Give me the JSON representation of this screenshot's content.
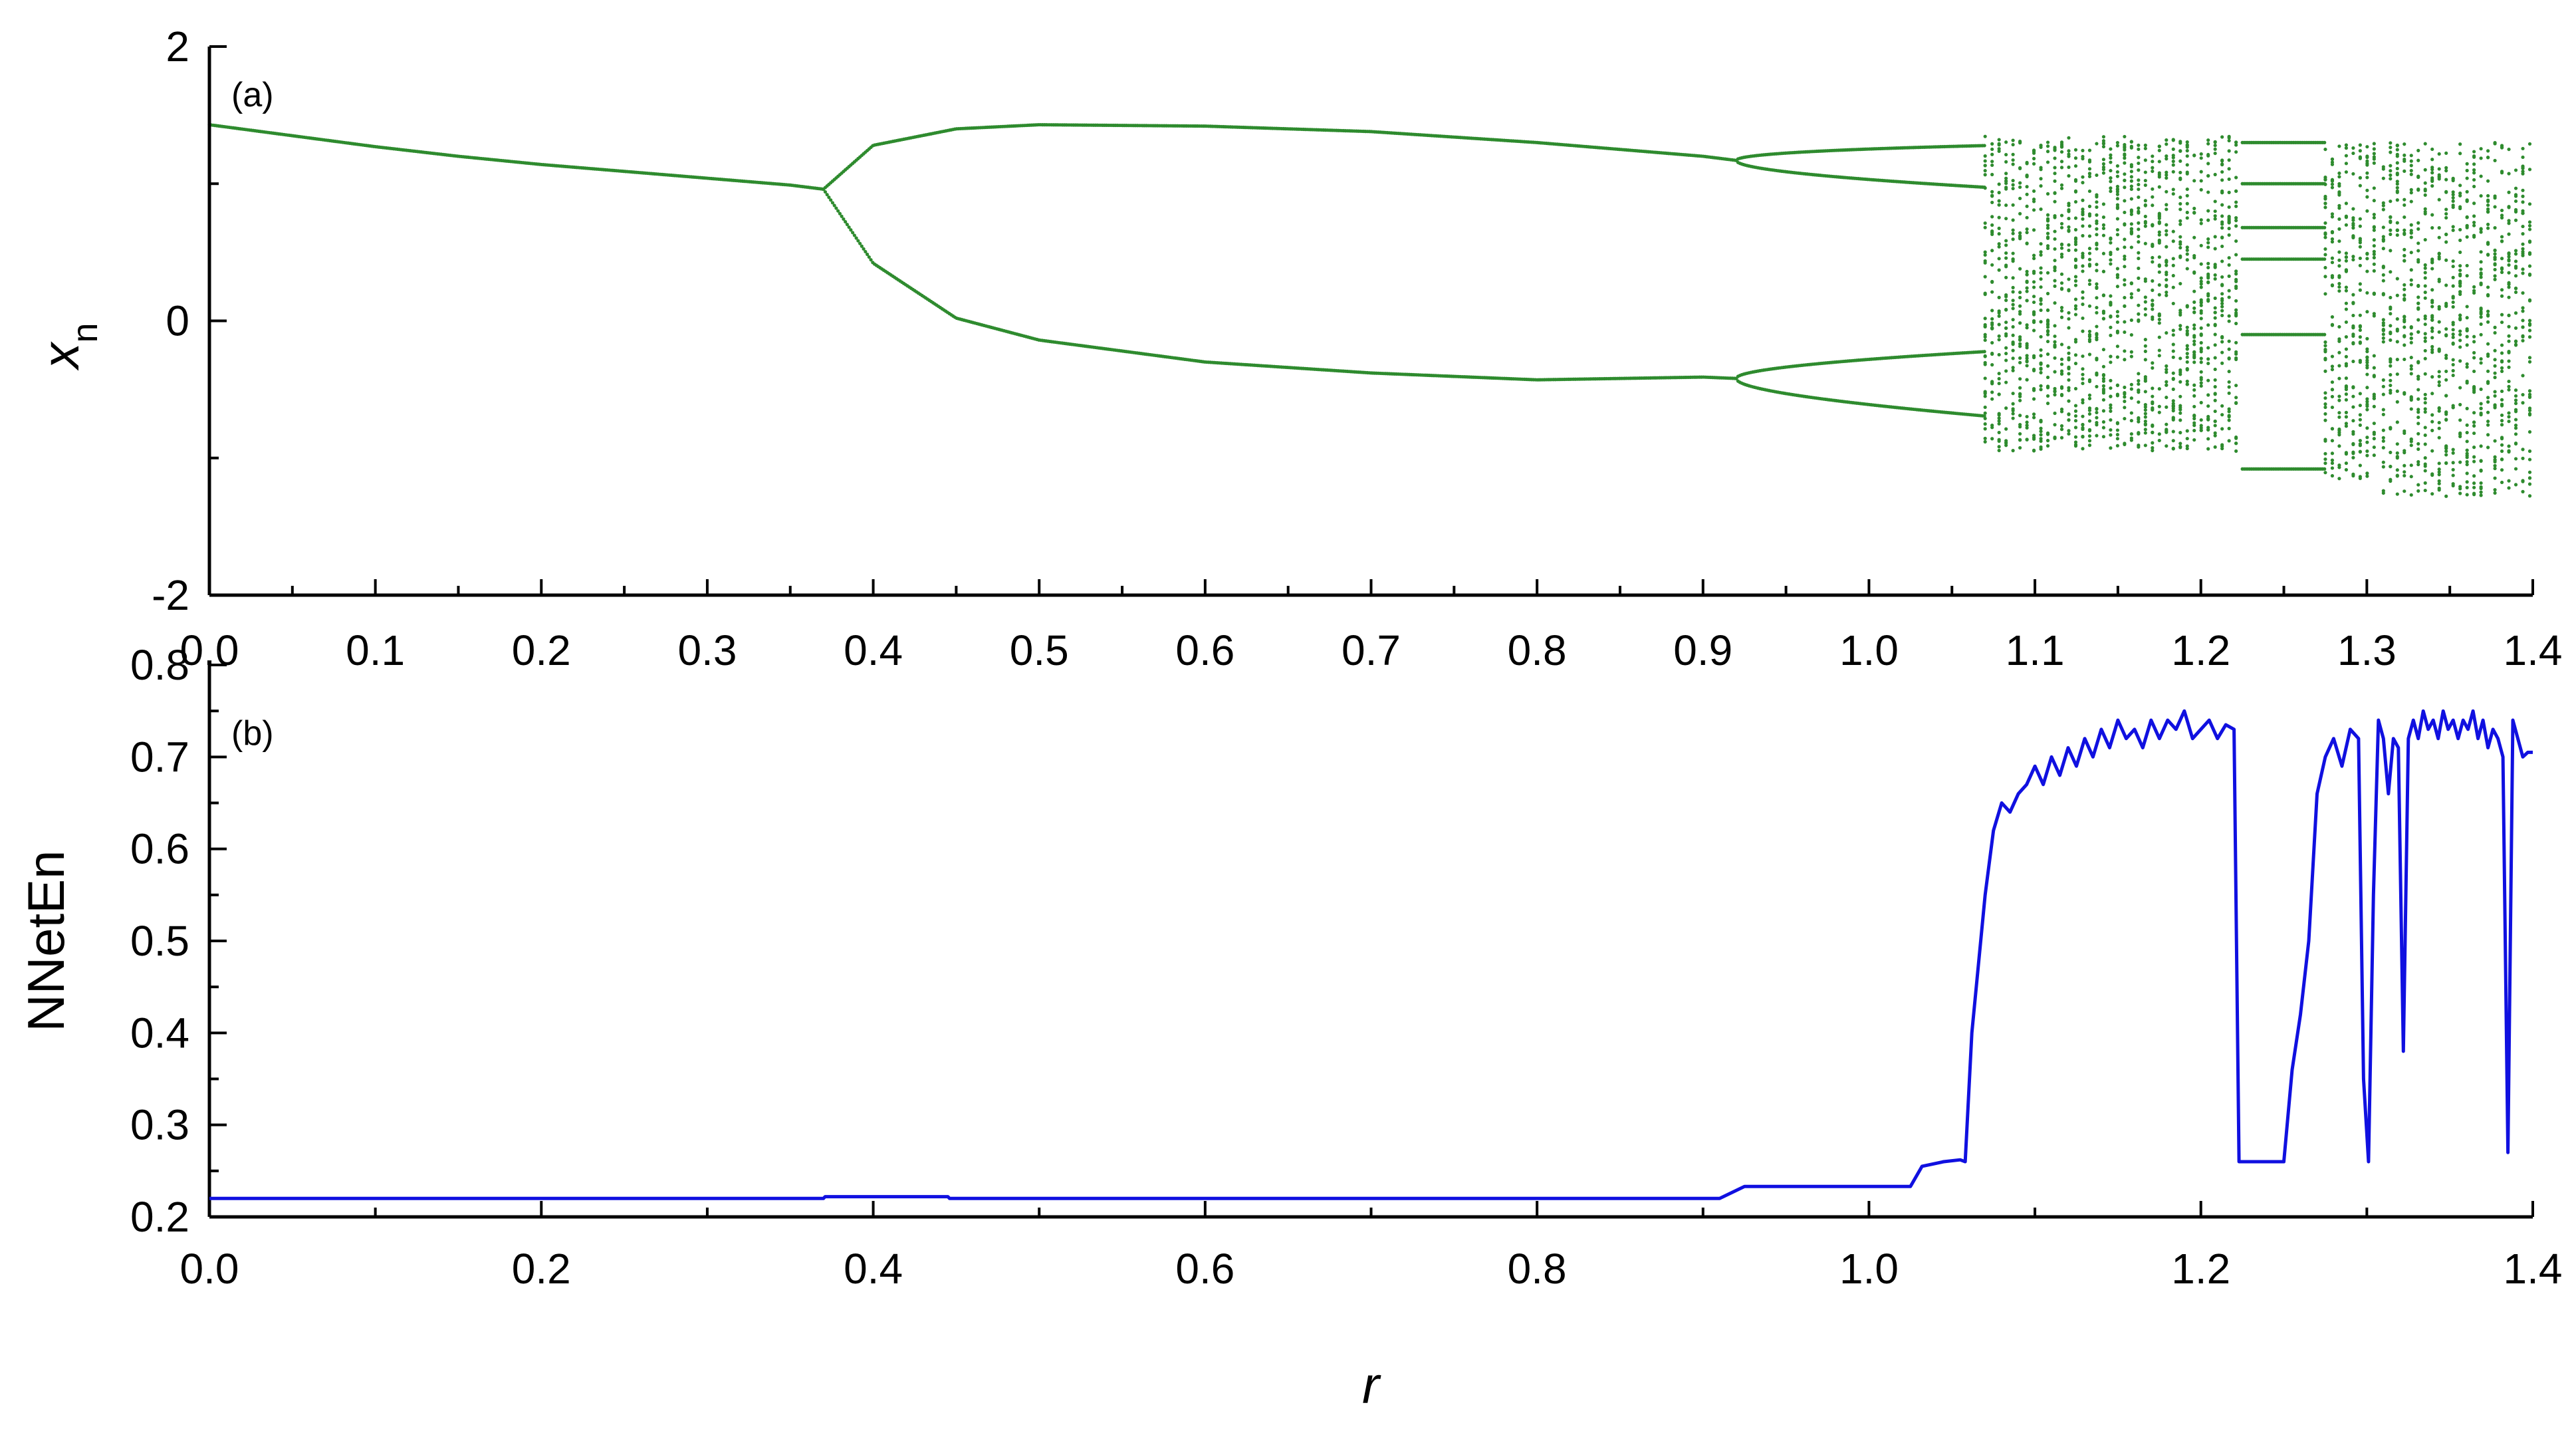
{
  "colors": {
    "bifurcation": "#2e8b2e",
    "entropy": "#1010e0",
    "axes": "#000000"
  },
  "chart_data": [
    {
      "type": "scatter",
      "panel_label": "(a)",
      "xlabel": "",
      "ylabel": "x",
      "ylabel_subscript": "n",
      "xlim": [
        0.0,
        1.4
      ],
      "ylim": [
        -2,
        2
      ],
      "xticks": [
        "0.0",
        "0.1",
        "0.2",
        "0.3",
        "0.4",
        "0.5",
        "0.6",
        "0.7",
        "0.8",
        "0.9",
        "1.0",
        "1.1",
        "1.2",
        "1.3",
        "1.4"
      ],
      "yticks": [
        "-2",
        "0",
        "2"
      ],
      "grid": false,
      "description_of_series": "bifurcation diagram of x_n versus r",
      "series": [
        {
          "kind": "period-1 branch",
          "x": [
            0.0,
            0.05,
            0.1,
            0.15,
            0.2,
            0.25,
            0.3,
            0.35,
            0.37
          ],
          "y": [
            1.43,
            1.35,
            1.27,
            1.2,
            1.14,
            1.09,
            1.04,
            0.99,
            0.96
          ]
        },
        {
          "kind": "period-2 upper branch",
          "x": [
            0.37,
            0.4,
            0.45,
            0.5,
            0.6,
            0.7,
            0.8,
            0.9,
            0.92
          ],
          "y": [
            0.96,
            1.28,
            1.4,
            1.43,
            1.42,
            1.38,
            1.3,
            1.2,
            1.17
          ]
        },
        {
          "kind": "period-2 lower branch",
          "x": [
            0.37,
            0.4,
            0.45,
            0.5,
            0.6,
            0.7,
            0.8,
            0.9,
            0.92
          ],
          "y": [
            0.96,
            0.42,
            0.02,
            -0.14,
            -0.3,
            -0.38,
            -0.43,
            -0.41,
            -0.42
          ]
        }
      ],
      "chaotic_bands": [
        {
          "r_start": 1.07,
          "r_end": 1.225,
          "y_min": -0.95,
          "y_max": 1.35
        },
        {
          "r_start": 1.275,
          "r_end": 1.305,
          "y_min": -1.15,
          "y_max": 1.3
        },
        {
          "r_start": 1.31,
          "r_end": 1.4,
          "y_min": -1.28,
          "y_max": 1.3
        }
      ]
    },
    {
      "type": "line",
      "panel_label": "(b)",
      "xlabel": "r",
      "ylabel": "NNetEn",
      "xlim": [
        0.0,
        1.4
      ],
      "ylim": [
        0.2,
        0.8
      ],
      "xticks": [
        "0.0",
        "0.2",
        "0.4",
        "0.6",
        "0.8",
        "1.0",
        "1.2",
        "1.4"
      ],
      "yticks": [
        "0.2",
        "0.3",
        "0.4",
        "0.5",
        "0.6",
        "0.7",
        "0.8"
      ],
      "grid": false,
      "series": [
        {
          "name": "",
          "x": [
            0.0,
            0.37,
            0.371,
            0.445,
            0.446,
            0.91,
            0.925,
            1.025,
            1.032,
            1.045,
            1.055,
            1.058,
            1.062,
            1.07,
            1.075,
            1.08,
            1.085,
            1.09,
            1.095,
            1.1,
            1.105,
            1.11,
            1.115,
            1.12,
            1.125,
            1.13,
            1.135,
            1.14,
            1.145,
            1.15,
            1.155,
            1.16,
            1.165,
            1.17,
            1.175,
            1.18,
            1.185,
            1.19,
            1.195,
            1.2,
            1.205,
            1.21,
            1.215,
            1.22,
            1.223,
            1.226,
            1.23,
            1.25,
            1.255,
            1.26,
            1.265,
            1.27,
            1.275,
            1.28,
            1.285,
            1.29,
            1.295,
            1.298,
            1.301,
            1.304,
            1.307,
            1.31,
            1.313,
            1.316,
            1.319,
            1.322,
            1.325,
            1.328,
            1.331,
            1.334,
            1.337,
            1.34,
            1.343,
            1.346,
            1.349,
            1.352,
            1.355,
            1.358,
            1.361,
            1.364,
            1.367,
            1.37,
            1.373,
            1.376,
            1.379,
            1.382,
            1.385,
            1.388,
            1.391,
            1.394,
            1.397,
            1.4
          ],
          "y": [
            0.22,
            0.22,
            0.222,
            0.222,
            0.22,
            0.22,
            0.233,
            0.233,
            0.255,
            0.26,
            0.262,
            0.26,
            0.4,
            0.55,
            0.62,
            0.65,
            0.64,
            0.66,
            0.67,
            0.69,
            0.67,
            0.7,
            0.68,
            0.71,
            0.69,
            0.72,
            0.7,
            0.73,
            0.71,
            0.74,
            0.72,
            0.73,
            0.71,
            0.74,
            0.72,
            0.74,
            0.73,
            0.75,
            0.72,
            0.73,
            0.74,
            0.72,
            0.735,
            0.73,
            0.26,
            0.26,
            0.26,
            0.26,
            0.36,
            0.42,
            0.5,
            0.66,
            0.7,
            0.72,
            0.69,
            0.73,
            0.72,
            0.35,
            0.26,
            0.55,
            0.74,
            0.72,
            0.66,
            0.72,
            0.71,
            0.38,
            0.72,
            0.74,
            0.72,
            0.75,
            0.73,
            0.74,
            0.72,
            0.75,
            0.73,
            0.74,
            0.72,
            0.74,
            0.73,
            0.75,
            0.72,
            0.74,
            0.71,
            0.73,
            0.72,
            0.7,
            0.27,
            0.74,
            0.72,
            0.7,
            0.705,
            0.705
          ]
        }
      ]
    }
  ]
}
